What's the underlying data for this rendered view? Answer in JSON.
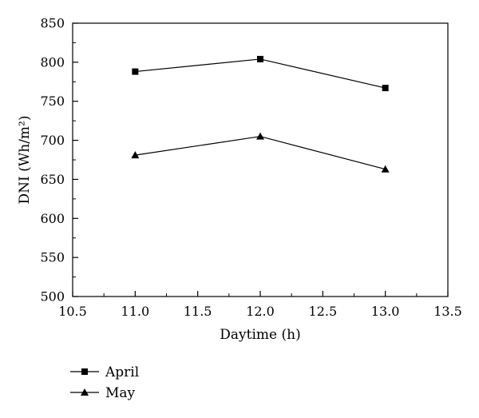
{
  "chart_data": {
    "type": "line",
    "xlabel": "Daytime (h)",
    "ylabel": "DNI (Wh/m²)",
    "xlim": [
      10.5,
      13.5
    ],
    "ylim": [
      500,
      850
    ],
    "xticks": [
      "10.5",
      "11.0",
      "11.5",
      "12.0",
      "12.5",
      "13.0",
      "13.5"
    ],
    "yticks": [
      "500",
      "550",
      "600",
      "650",
      "700",
      "750",
      "800",
      "850"
    ],
    "grid": false,
    "legend_position": "bottom-left, below plot",
    "x": [
      11.0,
      12.0,
      13.0
    ],
    "series": [
      {
        "name": "April",
        "marker": "square",
        "values": [
          788,
          804,
          767
        ]
      },
      {
        "name": "May",
        "marker": "triangle",
        "values": [
          681,
          705,
          663
        ]
      }
    ]
  }
}
